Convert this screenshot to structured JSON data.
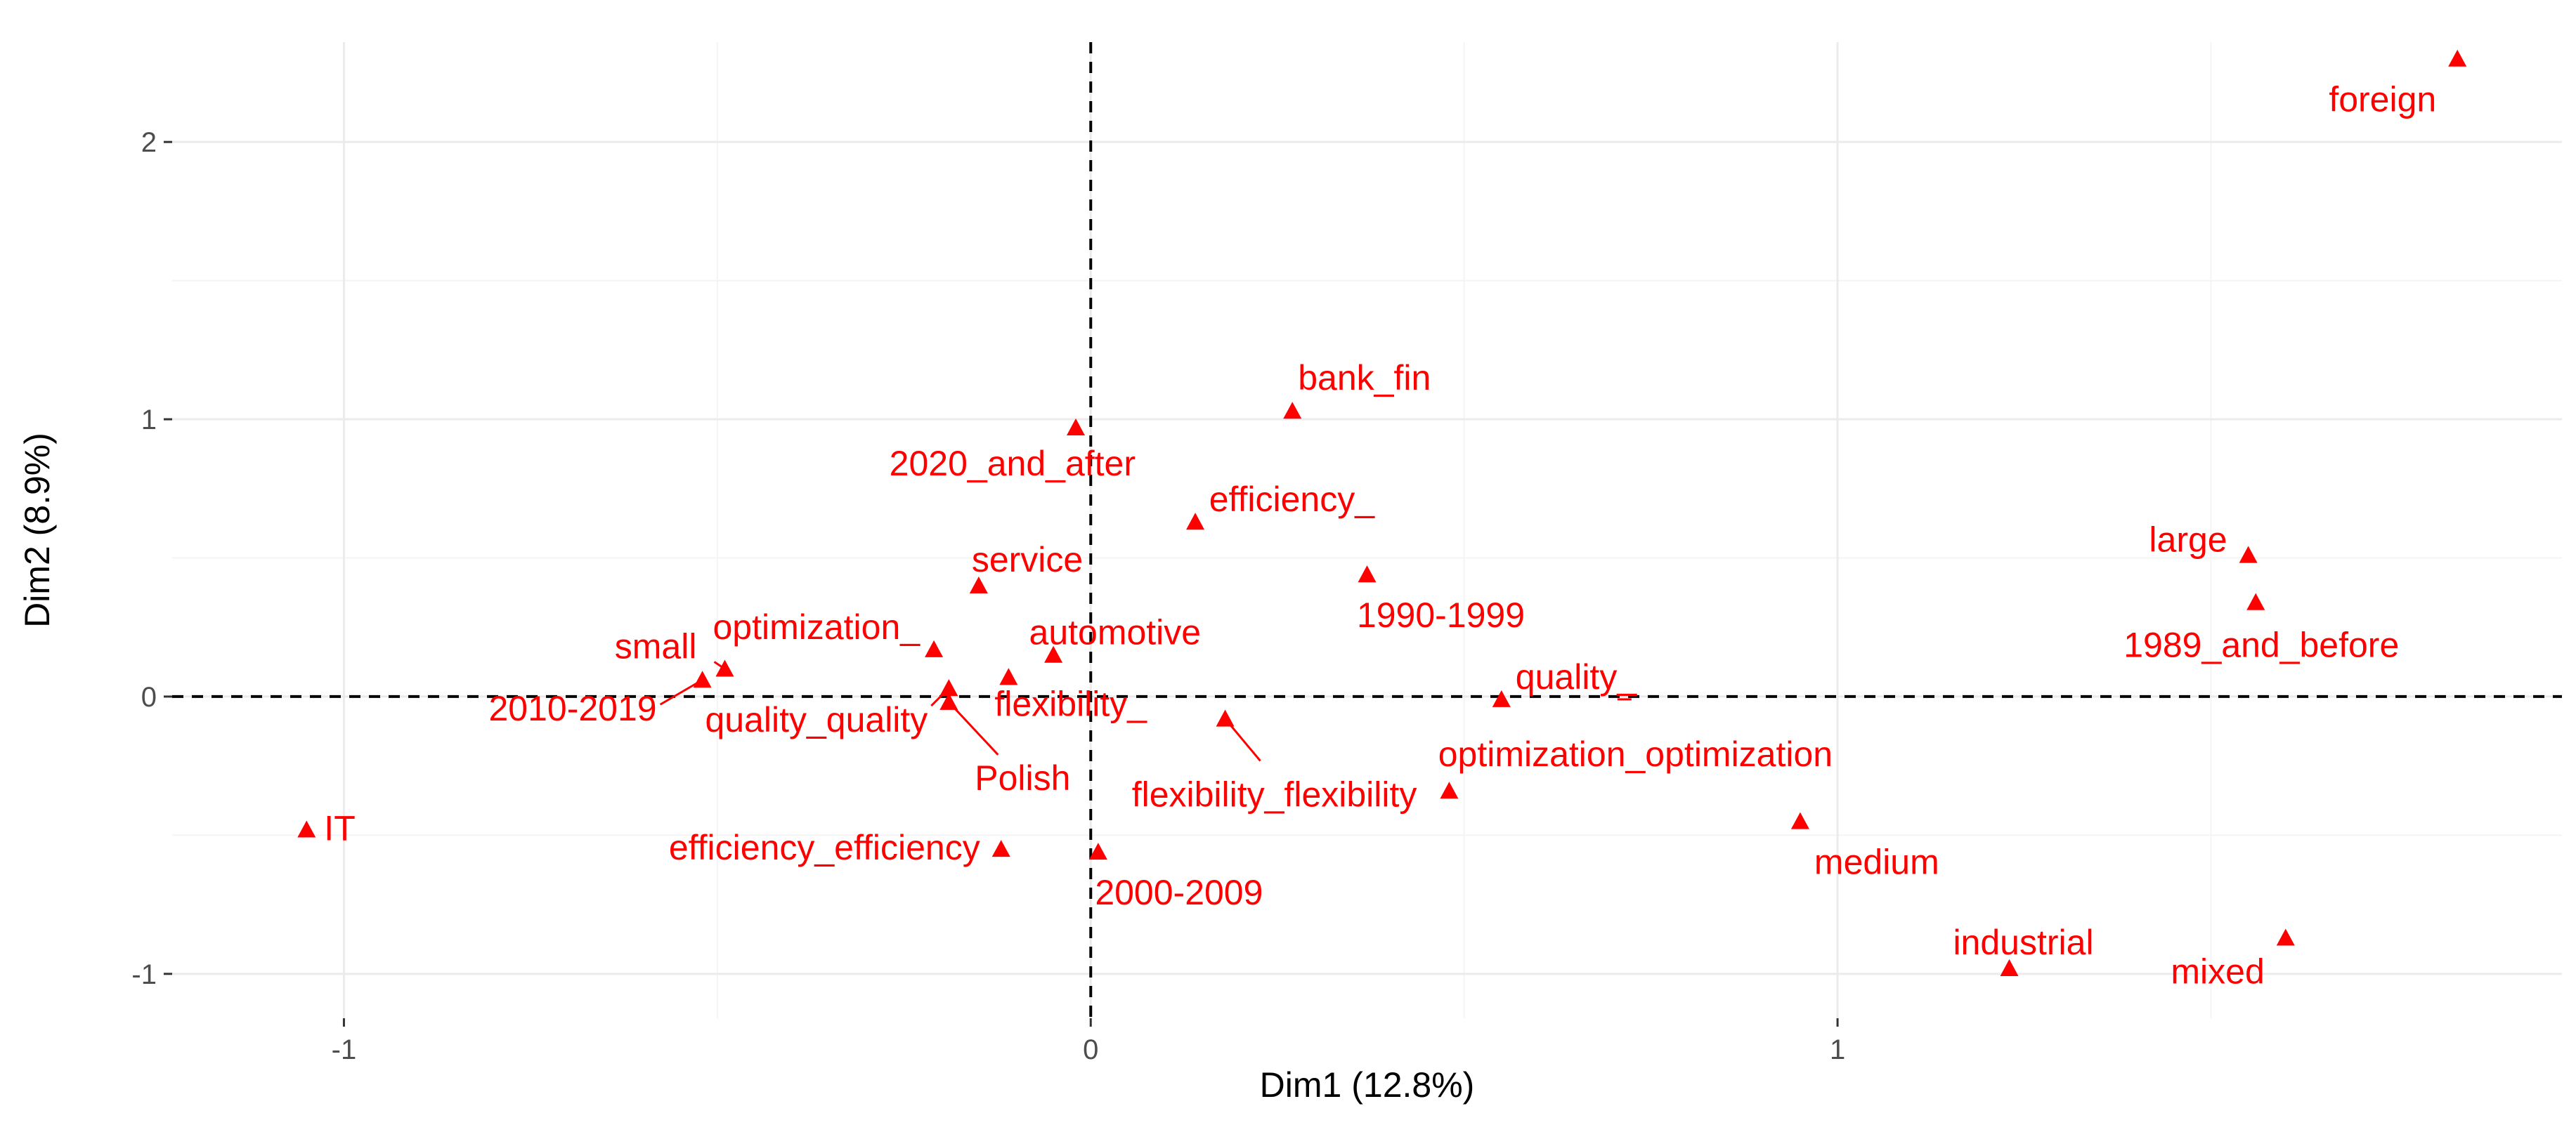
{
  "chart_data": {
    "type": "scatter",
    "title": "",
    "xlabel": "Dim1 (12.8%)",
    "ylabel": "Dim2 (8.9%)",
    "xlim": [
      -1.23,
      1.97
    ],
    "ylim": [
      -1.16,
      2.36
    ],
    "x_ticks": [
      -1,
      0,
      1
    ],
    "y_ticks": [
      -1,
      0,
      1,
      2
    ],
    "x_tick_labels": [
      "-1",
      "0",
      "1"
    ],
    "y_tick_labels": [
      "-1",
      "0",
      "1",
      "2"
    ],
    "grid": true,
    "reference_lines": {
      "x": 0,
      "y": 0,
      "style": "dashed"
    },
    "marker": "triangle",
    "point_color": "#ff0000",
    "points": [
      {
        "label": "foreign",
        "x": 1.83,
        "y": 2.3
      },
      {
        "label": "bank_fin",
        "x": 0.27,
        "y": 1.03
      },
      {
        "label": "2020_and_after",
        "x": -0.02,
        "y": 0.97
      },
      {
        "label": "efficiency_",
        "x": 0.14,
        "y": 0.63
      },
      {
        "label": "large",
        "x": 1.55,
        "y": 0.51
      },
      {
        "label": "1990-1999",
        "x": 0.37,
        "y": 0.44
      },
      {
        "label": "service",
        "x": -0.15,
        "y": 0.4
      },
      {
        "label": "1989_and_before",
        "x": 1.56,
        "y": 0.34
      },
      {
        "label": "optimization_",
        "x": -0.21,
        "y": 0.17
      },
      {
        "label": "automotive",
        "x": -0.05,
        "y": 0.15
      },
      {
        "label": "small",
        "x": -0.49,
        "y": 0.1
      },
      {
        "label": "flexibility_",
        "x": -0.11,
        "y": 0.07
      },
      {
        "label": "2010-2019",
        "x": -0.52,
        "y": 0.06
      },
      {
        "label": "quality_quality",
        "x": -0.19,
        "y": 0.03
      },
      {
        "label": "quality_",
        "x": 0.55,
        "y": -0.01
      },
      {
        "label": "Polish",
        "x": -0.19,
        "y": -0.02
      },
      {
        "label": "flexibility_flexibility",
        "x": 0.18,
        "y": -0.08
      },
      {
        "label": "optimization_optimization",
        "x": 0.48,
        "y": -0.34
      },
      {
        "label": "medium",
        "x": 0.95,
        "y": -0.45
      },
      {
        "label": "IT",
        "x": -1.05,
        "y": -0.48
      },
      {
        "label": "efficiency_efficiency",
        "x": -0.12,
        "y": -0.55
      },
      {
        "label": "2000-2009",
        "x": 0.01,
        "y": -0.56
      },
      {
        "label": "mixed",
        "x": 1.6,
        "y": -0.87
      },
      {
        "label": "industrial",
        "x": 1.23,
        "y": -0.98
      }
    ]
  }
}
